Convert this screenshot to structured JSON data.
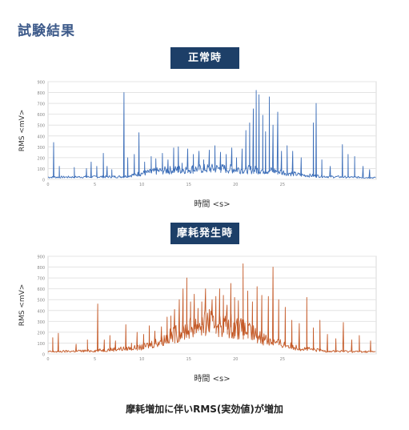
{
  "page_title": "試験結果",
  "footer_caption": "摩耗増加に伴いRMS(実効値)が増加",
  "chart_data": [
    {
      "type": "line",
      "badge": "正常時",
      "ylabel": "RMS <mV>",
      "xlabel": "時間 <s>",
      "color": "#3b6db8",
      "xlim": [
        0,
        35
      ],
      "ylim": [
        0,
        900
      ],
      "yticks": [
        0,
        100,
        200,
        300,
        400,
        500,
        600,
        700,
        800,
        900
      ],
      "xticks": [
        0,
        5,
        10,
        15,
        20,
        25
      ],
      "baseline": [
        [
          0,
          20
        ],
        [
          8,
          25
        ],
        [
          10,
          55
        ],
        [
          12,
          80
        ],
        [
          15,
          95
        ],
        [
          18,
          100
        ],
        [
          20,
          95
        ],
        [
          24,
          80
        ],
        [
          27,
          40
        ],
        [
          30,
          25
        ],
        [
          35,
          15
        ]
      ],
      "spikes": [
        [
          0.6,
          340
        ],
        [
          1.2,
          120
        ],
        [
          2.8,
          110
        ],
        [
          4.1,
          100
        ],
        [
          4.6,
          160
        ],
        [
          5.2,
          120
        ],
        [
          5.9,
          240
        ],
        [
          6.3,
          120
        ],
        [
          6.8,
          90
        ],
        [
          8.1,
          800
        ],
        [
          8.5,
          200
        ],
        [
          9.2,
          230
        ],
        [
          9.7,
          430
        ],
        [
          10.3,
          160
        ],
        [
          11.0,
          210
        ],
        [
          11.5,
          190
        ],
        [
          12.2,
          240
        ],
        [
          12.8,
          180
        ],
        [
          13.4,
          290
        ],
        [
          13.9,
          300
        ],
        [
          14.3,
          150
        ],
        [
          14.9,
          280
        ],
        [
          15.5,
          230
        ],
        [
          16.1,
          260
        ],
        [
          16.6,
          180
        ],
        [
          17.2,
          270
        ],
        [
          17.8,
          310
        ],
        [
          18.4,
          250
        ],
        [
          19.0,
          230
        ],
        [
          19.6,
          290
        ],
        [
          20.1,
          200
        ],
        [
          20.7,
          280
        ],
        [
          21.1,
          450
        ],
        [
          21.5,
          520
        ],
        [
          21.9,
          650
        ],
        [
          22.2,
          820
        ],
        [
          22.5,
          780
        ],
        [
          22.9,
          590
        ],
        [
          23.2,
          440
        ],
        [
          23.6,
          760
        ],
        [
          24.0,
          500
        ],
        [
          24.5,
          620
        ],
        [
          24.9,
          260
        ],
        [
          25.5,
          310
        ],
        [
          26.1,
          260
        ],
        [
          27.0,
          200
        ],
        [
          28.3,
          520
        ],
        [
          28.6,
          700
        ],
        [
          29.2,
          180
        ],
        [
          30.1,
          120
        ],
        [
          31.4,
          320
        ],
        [
          32.0,
          230
        ],
        [
          32.7,
          210
        ],
        [
          33.6,
          120
        ],
        [
          34.3,
          90
        ]
      ]
    },
    {
      "type": "line",
      "badge": "摩耗発生時",
      "ylabel": "RMS <mV>",
      "xlabel": "時間 <s>",
      "color": "#c45a28",
      "xlim": [
        0,
        35
      ],
      "ylim": [
        0,
        900
      ],
      "yticks": [
        0,
        100,
        200,
        300,
        400,
        500,
        600,
        700,
        800,
        900
      ],
      "xticks": [
        0,
        5,
        10,
        15,
        20,
        25
      ],
      "baseline": [
        [
          0,
          20
        ],
        [
          5,
          30
        ],
        [
          10,
          60
        ],
        [
          12,
          120
        ],
        [
          14,
          200
        ],
        [
          16,
          270
        ],
        [
          18,
          290
        ],
        [
          20,
          250
        ],
        [
          22,
          180
        ],
        [
          24,
          110
        ],
        [
          27,
          50
        ],
        [
          30,
          25
        ],
        [
          35,
          20
        ]
      ],
      "spikes": [
        [
          0.5,
          150
        ],
        [
          1.1,
          190
        ],
        [
          3.0,
          90
        ],
        [
          4.2,
          130
        ],
        [
          5.3,
          460
        ],
        [
          6.0,
          130
        ],
        [
          6.6,
          170
        ],
        [
          7.2,
          120
        ],
        [
          8.3,
          270
        ],
        [
          8.9,
          100
        ],
        [
          9.5,
          200
        ],
        [
          10.2,
          180
        ],
        [
          10.8,
          260
        ],
        [
          11.4,
          210
        ],
        [
          12.1,
          250
        ],
        [
          12.7,
          340
        ],
        [
          13.1,
          350
        ],
        [
          13.5,
          410
        ],
        [
          14.0,
          500
        ],
        [
          14.4,
          600
        ],
        [
          14.8,
          700
        ],
        [
          15.2,
          480
        ],
        [
          15.6,
          550
        ],
        [
          16.0,
          420
        ],
        [
          16.4,
          480
        ],
        [
          16.8,
          600
        ],
        [
          17.2,
          410
        ],
        [
          17.5,
          500
        ],
        [
          17.9,
          530
        ],
        [
          18.3,
          600
        ],
        [
          18.7,
          540
        ],
        [
          19.1,
          450
        ],
        [
          19.5,
          650
        ],
        [
          19.9,
          520
        ],
        [
          20.3,
          490
        ],
        [
          20.8,
          830
        ],
        [
          21.3,
          580
        ],
        [
          21.8,
          480
        ],
        [
          22.3,
          620
        ],
        [
          22.8,
          540
        ],
        [
          23.5,
          530
        ],
        [
          24.0,
          800
        ],
        [
          24.6,
          500
        ],
        [
          25.3,
          430
        ],
        [
          26.0,
          310
        ],
        [
          26.8,
          280
        ],
        [
          27.6,
          520
        ],
        [
          28.3,
          240
        ],
        [
          29.0,
          310
        ],
        [
          29.8,
          180
        ],
        [
          30.7,
          140
        ],
        [
          31.5,
          290
        ],
        [
          32.4,
          130
        ],
        [
          33.2,
          170
        ],
        [
          34.4,
          120
        ]
      ]
    }
  ]
}
